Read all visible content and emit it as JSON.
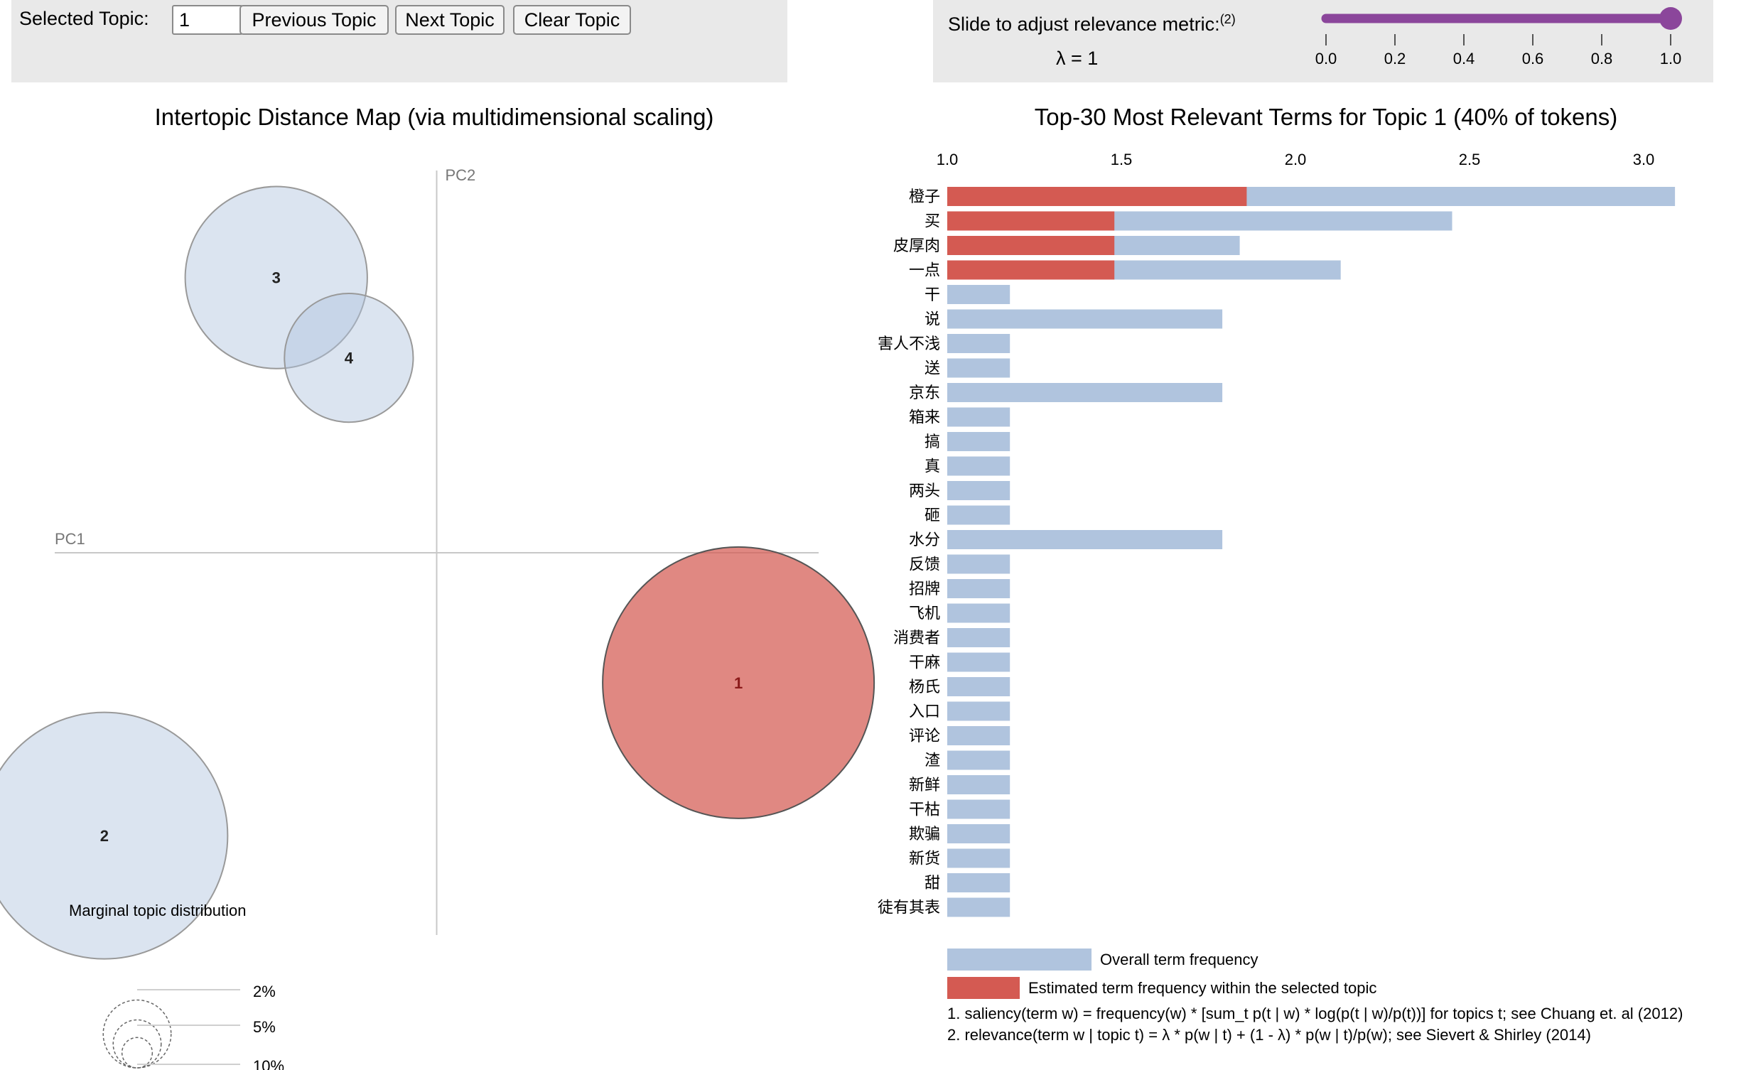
{
  "controls": {
    "selected_topic_label": "Selected Topic:",
    "selected_topic_value": "1",
    "prev_label": "Previous Topic",
    "next_label": "Next Topic",
    "clear_label": "Clear Topic",
    "slider_label": "Slide to adjust relevance metric:",
    "slider_label_sup": "(2)",
    "lambda_text": "λ = 1",
    "slider_value": 1.0,
    "slider_ticks": [
      "0.0",
      "0.2",
      "0.4",
      "0.6",
      "0.8",
      "1.0"
    ],
    "slider_color": "#8b469b"
  },
  "chart_data": [
    {
      "type": "scatter",
      "title": "Intertopic Distance Map (via multidimensional scaling)",
      "xlabel": "PC1",
      "ylabel": "PC2",
      "xlim": [
        -1,
        1
      ],
      "ylim": [
        -1,
        1
      ],
      "topics": [
        {
          "label": "1",
          "x": 0.79,
          "y": -0.34,
          "size_pct": 40,
          "selected": true
        },
        {
          "label": "2",
          "x": -0.87,
          "y": -0.74,
          "size_pct": 33,
          "selected": false
        },
        {
          "label": "3",
          "x": -0.42,
          "y": 0.72,
          "size_pct": 18,
          "selected": false
        },
        {
          "label": "4",
          "x": -0.23,
          "y": 0.51,
          "size_pct": 9,
          "selected": false
        }
      ],
      "legend_title": "Marginal topic distribution",
      "legend_ticks": [
        "2%",
        "5%",
        "10%"
      ],
      "legend_values": [
        2,
        5,
        10
      ],
      "colors": {
        "default_fill": "#b0c4de",
        "selected_fill": "#d45a52",
        "stroke": "#888888"
      }
    },
    {
      "type": "bar",
      "title": "Top-30 Most Relevant Terms for Topic 1 (40% of tokens)",
      "xlim": [
        1.0,
        3.1
      ],
      "x_ticks": [
        "1.0",
        "1.5",
        "2.0",
        "2.5",
        "3.0"
      ],
      "x_tick_values": [
        1.0,
        1.5,
        2.0,
        2.5,
        3.0
      ],
      "terms": [
        "橙子",
        "买",
        "皮厚肉",
        "一点",
        "干",
        "说",
        "害人不浅",
        "送",
        "京东",
        "箱来",
        "搞",
        "真",
        "两头",
        "砸",
        "水分",
        "反馈",
        "招牌",
        "飞机",
        "消费者",
        "干麻",
        "杨氏",
        "入口",
        "评论",
        "渣",
        "新鲜",
        "干枯",
        "欺骗",
        "新货",
        "甜",
        "徒有其表"
      ],
      "series": [
        {
          "name": "Overall term frequency",
          "color": "#b0c4de",
          "values": [
            3.09,
            2.45,
            1.84,
            2.13,
            1.18,
            1.79,
            1.18,
            1.18,
            1.79,
            1.18,
            1.18,
            1.18,
            1.18,
            1.18,
            1.79,
            1.18,
            1.18,
            1.18,
            1.18,
            1.18,
            1.18,
            1.18,
            1.18,
            1.18,
            1.18,
            1.18,
            1.18,
            1.18,
            1.18,
            1.18
          ]
        },
        {
          "name": "Estimated term frequency within the selected topic",
          "color": "#d45a52",
          "values": [
            1.86,
            1.48,
            1.48,
            1.48,
            null,
            null,
            null,
            null,
            null,
            null,
            null,
            null,
            null,
            null,
            null,
            null,
            null,
            null,
            null,
            null,
            null,
            null,
            null,
            null,
            null,
            null,
            null,
            null,
            null,
            null
          ]
        }
      ]
    }
  ],
  "footnotes": [
    "1. saliency(term w) = frequency(w) * [sum_t p(t | w) * log(p(t | w)/p(t))] for topics t; see Chuang et. al (2012)",
    "2. relevance(term w | topic t) = λ * p(w | t) + (1 - λ) * p(w | t)/p(w); see Sievert & Shirley (2014)"
  ]
}
